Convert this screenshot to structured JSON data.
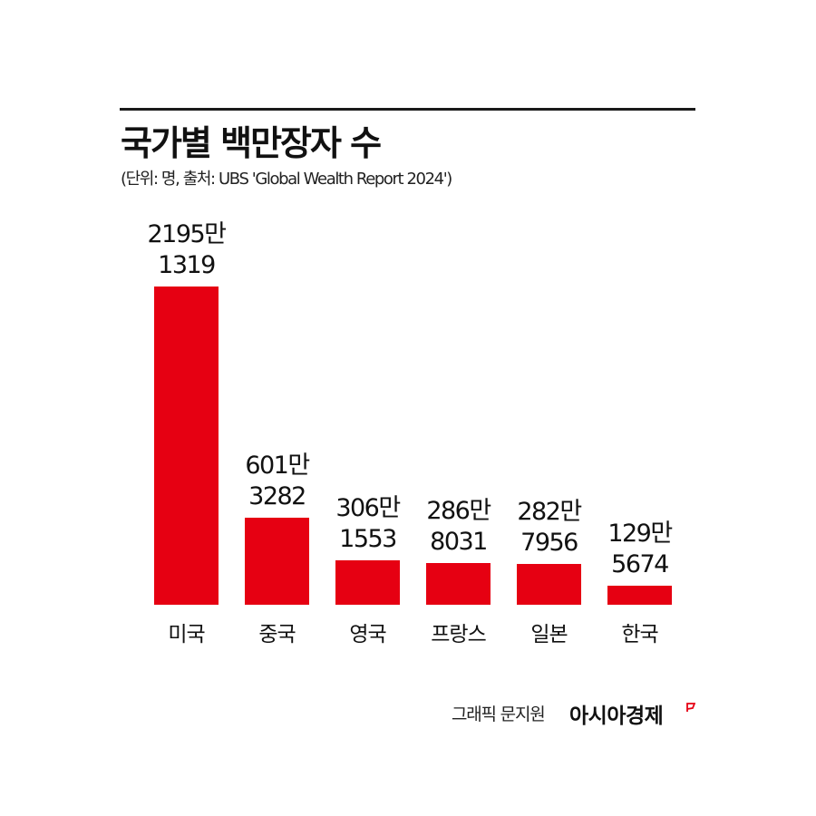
{
  "header": {
    "title": "국가별 백만장자 수",
    "subtitle": "(단위: 명, 출처: UBS 'Global Wealth Report 2024')"
  },
  "chart_data": {
    "type": "bar",
    "title": "국가별 백만장자 수",
    "subtitle": "(단위: 명, 출처: UBS 'Global Wealth Report 2024')",
    "xlabel": "",
    "ylabel": "명",
    "categories": [
      "미국",
      "중국",
      "영국",
      "프랑스",
      "일본",
      "한국"
    ],
    "values": [
      21951319,
      6013282,
      3061553,
      2868031,
      2827956,
      1295674
    ],
    "labels": [
      {
        "line1": "2195만",
        "line2": "1319"
      },
      {
        "line1": "601만",
        "line2": "3282"
      },
      {
        "line1": "306만",
        "line2": "1553"
      },
      {
        "line1": "286만",
        "line2": "8031"
      },
      {
        "line1": "282만",
        "line2": "7956"
      },
      {
        "line1": "129만",
        "line2": "5674"
      }
    ],
    "grid": false,
    "legend": "none",
    "bar_color": "#e60012"
  },
  "footer": {
    "credit": "그래픽 문지원",
    "brand": "아시아경제",
    "brand_icon": "red-flag-icon"
  },
  "colors": {
    "bar": "#e60012",
    "text": "#111111",
    "rule": "#1a1a1a"
  }
}
